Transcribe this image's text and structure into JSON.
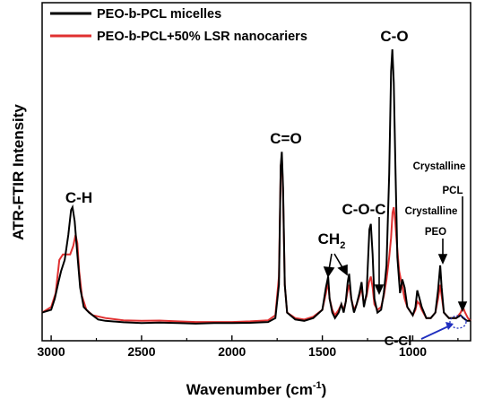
{
  "chart_data": {
    "type": "line",
    "title": "",
    "xlabel": "Wavenumber (cm-1)",
    "xlabel_main": "Wavenumber (cm",
    "xlabel_sup": "-1",
    "xlabel_close": ")",
    "ylabel": "ATR-FTIR Intensity",
    "xlim": [
      3050,
      680
    ],
    "x_reversed": true,
    "xticks": [
      3000,
      2500,
      2000,
      1500,
      1000
    ],
    "xtick_labels": [
      "3000",
      "2500",
      "2000",
      "1500",
      "1000"
    ],
    "y_ticks_shown": false,
    "legend_position": "top-left",
    "series": [
      {
        "name": "PEO-b-PCL micelles",
        "color": "#000000",
        "points": [
          [
            3050,
            0.05
          ],
          [
            3000,
            0.06
          ],
          [
            2980,
            0.1
          ],
          [
            2960,
            0.16
          ],
          [
            2945,
            0.2
          ],
          [
            2925,
            0.24
          ],
          [
            2905,
            0.33
          ],
          [
            2890,
            0.42
          ],
          [
            2882,
            0.43
          ],
          [
            2870,
            0.38
          ],
          [
            2855,
            0.26
          ],
          [
            2840,
            0.14
          ],
          [
            2820,
            0.07
          ],
          [
            2790,
            0.05
          ],
          [
            2740,
            0.025
          ],
          [
            2700,
            0.02
          ],
          [
            2600,
            0.015
          ],
          [
            2500,
            0.012
          ],
          [
            2400,
            0.014
          ],
          [
            2300,
            0.012
          ],
          [
            2200,
            0.01
          ],
          [
            2100,
            0.012
          ],
          [
            2000,
            0.012
          ],
          [
            1900,
            0.013
          ],
          [
            1800,
            0.016
          ],
          [
            1760,
            0.03
          ],
          [
            1740,
            0.15
          ],
          [
            1730,
            0.58
          ],
          [
            1724,
            0.63
          ],
          [
            1717,
            0.5
          ],
          [
            1708,
            0.15
          ],
          [
            1695,
            0.05
          ],
          [
            1650,
            0.025
          ],
          [
            1600,
            0.02
          ],
          [
            1550,
            0.03
          ],
          [
            1500,
            0.06
          ],
          [
            1480,
            0.14
          ],
          [
            1468,
            0.18
          ],
          [
            1460,
            0.1
          ],
          [
            1445,
            0.05
          ],
          [
            1430,
            0.03
          ],
          [
            1410,
            0.05
          ],
          [
            1395,
            0.08
          ],
          [
            1382,
            0.05
          ],
          [
            1370,
            0.09
          ],
          [
            1360,
            0.16
          ],
          [
            1352,
            0.19
          ],
          [
            1340,
            0.1
          ],
          [
            1325,
            0.05
          ],
          [
            1310,
            0.08
          ],
          [
            1295,
            0.12
          ],
          [
            1283,
            0.16
          ],
          [
            1270,
            0.07
          ],
          [
            1255,
            0.12
          ],
          [
            1240,
            0.35
          ],
          [
            1232,
            0.37
          ],
          [
            1222,
            0.26
          ],
          [
            1212,
            0.1
          ],
          [
            1195,
            0.05
          ],
          [
            1175,
            0.06
          ],
          [
            1160,
            0.12
          ],
          [
            1145,
            0.22
          ],
          [
            1130,
            0.55
          ],
          [
            1120,
            0.92
          ],
          [
            1113,
            1.0
          ],
          [
            1105,
            0.88
          ],
          [
            1095,
            0.55
          ],
          [
            1085,
            0.25
          ],
          [
            1070,
            0.12
          ],
          [
            1058,
            0.17
          ],
          [
            1045,
            0.14
          ],
          [
            1030,
            0.07
          ],
          [
            1000,
            0.04
          ],
          [
            985,
            0.07
          ],
          [
            975,
            0.13
          ],
          [
            962,
            0.1
          ],
          [
            950,
            0.07
          ],
          [
            925,
            0.03
          ],
          [
            900,
            0.03
          ],
          [
            875,
            0.05
          ],
          [
            860,
            0.13
          ],
          [
            848,
            0.22
          ],
          [
            840,
            0.14
          ],
          [
            828,
            0.05
          ],
          [
            800,
            0.03
          ],
          [
            760,
            0.03
          ],
          [
            735,
            0.04
          ],
          [
            720,
            0.03
          ],
          [
            700,
            0.02
          ],
          [
            680,
            0.02
          ]
        ]
      },
      {
        "name": "PEO-b-PCL+50% LSR nanocariers",
        "color": "#e03030",
        "points": [
          [
            3050,
            0.05
          ],
          [
            3000,
            0.07
          ],
          [
            2975,
            0.12
          ],
          [
            2955,
            0.24
          ],
          [
            2935,
            0.26
          ],
          [
            2915,
            0.26
          ],
          [
            2895,
            0.26
          ],
          [
            2878,
            0.29
          ],
          [
            2865,
            0.33
          ],
          [
            2855,
            0.3
          ],
          [
            2845,
            0.2
          ],
          [
            2830,
            0.11
          ],
          [
            2805,
            0.06
          ],
          [
            2770,
            0.04
          ],
          [
            2700,
            0.03
          ],
          [
            2600,
            0.022
          ],
          [
            2500,
            0.02
          ],
          [
            2400,
            0.021
          ],
          [
            2300,
            0.018
          ],
          [
            2200,
            0.016
          ],
          [
            2100,
            0.016
          ],
          [
            2000,
            0.016
          ],
          [
            1900,
            0.018
          ],
          [
            1800,
            0.022
          ],
          [
            1760,
            0.04
          ],
          [
            1740,
            0.18
          ],
          [
            1730,
            0.58
          ],
          [
            1724,
            0.61
          ],
          [
            1717,
            0.48
          ],
          [
            1708,
            0.15
          ],
          [
            1695,
            0.05
          ],
          [
            1650,
            0.03
          ],
          [
            1600,
            0.025
          ],
          [
            1550,
            0.035
          ],
          [
            1500,
            0.06
          ],
          [
            1480,
            0.12
          ],
          [
            1468,
            0.16
          ],
          [
            1460,
            0.1
          ],
          [
            1445,
            0.06
          ],
          [
            1430,
            0.04
          ],
          [
            1410,
            0.06
          ],
          [
            1395,
            0.08
          ],
          [
            1382,
            0.06
          ],
          [
            1370,
            0.09
          ],
          [
            1360,
            0.13
          ],
          [
            1352,
            0.15
          ],
          [
            1340,
            0.1
          ],
          [
            1325,
            0.06
          ],
          [
            1310,
            0.08
          ],
          [
            1295,
            0.11
          ],
          [
            1283,
            0.14
          ],
          [
            1270,
            0.08
          ],
          [
            1255,
            0.11
          ],
          [
            1242,
            0.16
          ],
          [
            1232,
            0.18
          ],
          [
            1222,
            0.14
          ],
          [
            1212,
            0.08
          ],
          [
            1195,
            0.06
          ],
          [
            1175,
            0.07
          ],
          [
            1160,
            0.11
          ],
          [
            1145,
            0.17
          ],
          [
            1130,
            0.25
          ],
          [
            1120,
            0.32
          ],
          [
            1112,
            0.41
          ],
          [
            1105,
            0.43
          ],
          [
            1097,
            0.38
          ],
          [
            1088,
            0.3
          ],
          [
            1075,
            0.2
          ],
          [
            1060,
            0.15
          ],
          [
            1045,
            0.1
          ],
          [
            1030,
            0.07
          ],
          [
            1000,
            0.04
          ],
          [
            985,
            0.06
          ],
          [
            975,
            0.09
          ],
          [
            962,
            0.08
          ],
          [
            950,
            0.06
          ],
          [
            925,
            0.03
          ],
          [
            900,
            0.03
          ],
          [
            875,
            0.05
          ],
          [
            860,
            0.1
          ],
          [
            848,
            0.15
          ],
          [
            840,
            0.11
          ],
          [
            828,
            0.05
          ],
          [
            800,
            0.03
          ],
          [
            760,
            0.03
          ],
          [
            735,
            0.05
          ],
          [
            722,
            0.07
          ],
          [
            710,
            0.05
          ],
          [
            695,
            0.03
          ],
          [
            680,
            0.02
          ]
        ]
      }
    ],
    "annotations": {
      "ch": "C-H",
      "co_double": "C=O",
      "co": "C-O",
      "coc": "C-O-C",
      "ch2": "CH",
      "ch2_sub": "2",
      "cryst1": "Crystalline",
      "pcl": "PCL",
      "cryst2": "Crystalline",
      "peo": "PEO",
      "ccl": "C-Cl"
    },
    "annotation_color_ccl": "#1f2fbf"
  }
}
